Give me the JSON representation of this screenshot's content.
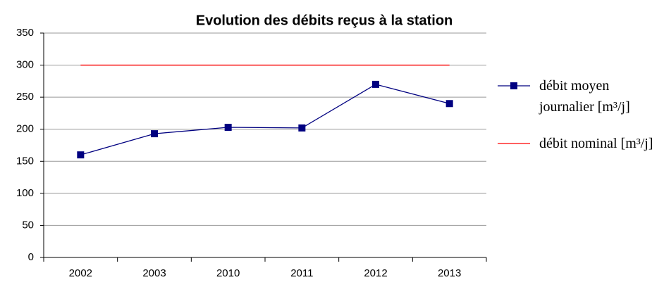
{
  "chart_data": {
    "type": "line",
    "title": "Evolution des débits reçus à la station",
    "categories": [
      "2002",
      "2003",
      "2010",
      "2011",
      "2012",
      "2013"
    ],
    "series": [
      {
        "name": "débit moyen journalier [m³/j]",
        "color": "#000080",
        "values": [
          160,
          193,
          203,
          202,
          270,
          240
        ],
        "marker": "square"
      },
      {
        "name": "débit nominal [m³/j]",
        "color": "#ff0000",
        "values": [
          300,
          300,
          300,
          300,
          300,
          300
        ]
      }
    ],
    "ylim": [
      0,
      350
    ],
    "yticks": [
      0,
      50,
      100,
      150,
      200,
      250,
      300,
      350
    ],
    "grid": true,
    "legend": "right"
  }
}
